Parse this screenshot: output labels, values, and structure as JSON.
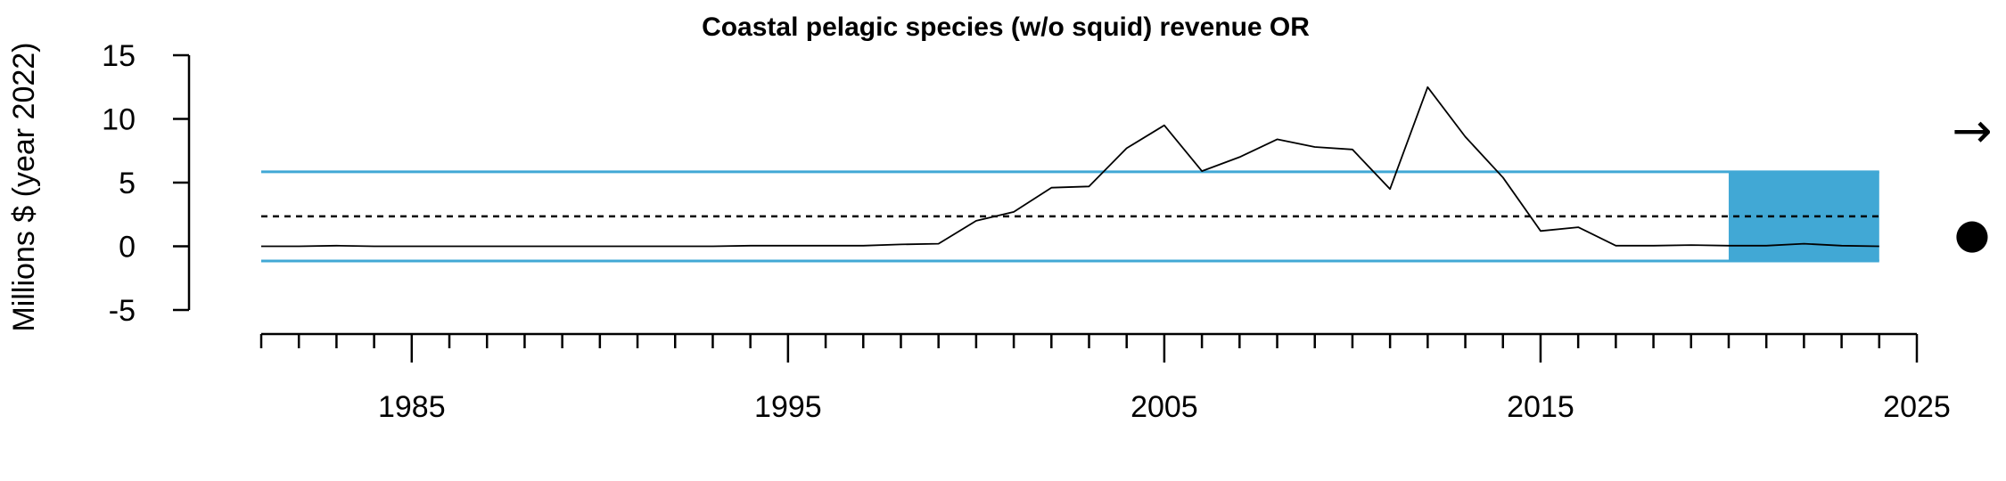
{
  "chart_data": {
    "type": "line",
    "title": "Coastal pelagic species (w/o squid) revenue OR",
    "xlabel": "",
    "ylabel": "Millions $ (year 2022)",
    "xlim": [
      1981,
      2025
    ],
    "ylim": [
      -5,
      15
    ],
    "x_ticks": [
      1985,
      1995,
      2005,
      2015,
      2025
    ],
    "y_ticks": [
      -5,
      0,
      5,
      10,
      15
    ],
    "series": [
      {
        "x": [
          1981,
          1982,
          1983,
          1984,
          1985,
          1986,
          1987,
          1988,
          1989,
          1990,
          1991,
          1992,
          1993,
          1994,
          1995,
          1996,
          1997,
          1998,
          1999,
          2000,
          2001,
          2002,
          2003,
          2004,
          2005,
          2006,
          2007,
          2008,
          2009,
          2010,
          2011,
          2012,
          2013,
          2014,
          2015,
          2016,
          2017,
          2018,
          2019,
          2020,
          2021,
          2022,
          2023,
          2024
        ],
        "values": [
          0.0,
          0.0,
          0.05,
          0.0,
          0.0,
          0.0,
          0.0,
          0.0,
          0.0,
          0.0,
          0.0,
          0.0,
          0.0,
          0.05,
          0.05,
          0.05,
          0.05,
          0.15,
          0.2,
          2.0,
          2.7,
          4.6,
          4.7,
          7.7,
          9.5,
          5.9,
          7.0,
          8.4,
          7.8,
          7.6,
          4.5,
          12.5,
          8.6,
          5.4,
          1.2,
          1.5,
          0.05,
          0.05,
          0.1,
          0.05,
          0.05,
          0.2,
          0.05,
          0.0
        ]
      }
    ],
    "mean": 2.35,
    "sd_band": [
      -1.15,
      5.85
    ],
    "recent_window": [
      2020,
      2024
    ],
    "colors": {
      "band": "#41a8d5",
      "line": "#000000"
    },
    "trend_symbol": "→",
    "status_symbol": "●"
  }
}
